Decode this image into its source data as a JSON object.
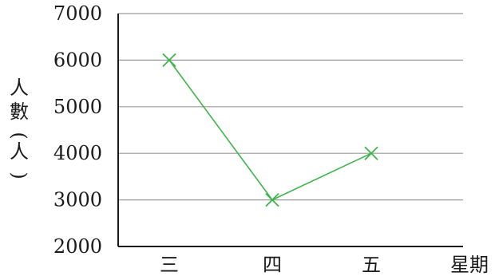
{
  "chart_data": {
    "type": "line",
    "categories": [
      "三",
      "四",
      "五"
    ],
    "series": [
      {
        "values": [
          6000,
          3000,
          4000
        ],
        "color": "#3cb54a",
        "marker": "x"
      }
    ],
    "ylim": [
      2000,
      7000
    ],
    "yticks": [
      2000,
      3000,
      4000,
      5000,
      6000,
      7000
    ],
    "xlabel": "星期",
    "ylabel": "人數(人)",
    "grid": "horizontal",
    "grid_color": "#9a9a9a",
    "axis_color": "#1a1a1a"
  }
}
